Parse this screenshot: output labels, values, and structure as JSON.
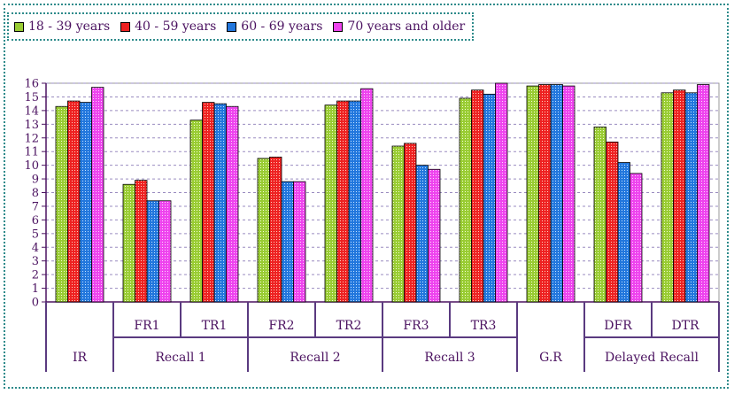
{
  "chart_data": {
    "type": "bar",
    "legend_position": "top-left",
    "grid": true,
    "ylim": [
      0,
      16
    ],
    "y_ticks": [
      "0",
      "1",
      "2",
      "3",
      "4",
      "5",
      "6",
      "7",
      "8",
      "9",
      "10",
      "11",
      "12",
      "13",
      "14",
      "15",
      "16"
    ],
    "categories": [
      "IR",
      "FR1",
      "TR1",
      "FR2",
      "TR2",
      "FR3",
      "TR3",
      "G.R",
      "DFR",
      "DTR"
    ],
    "category_labels": [
      "",
      "FR1",
      "TR1",
      "FR2",
      "TR2",
      "FR3",
      "TR3",
      "",
      "DFR",
      "DTR"
    ],
    "groups": [
      {
        "label": "IR",
        "span": 1
      },
      {
        "label": "Recall 1",
        "span": 2
      },
      {
        "label": "Recall 2",
        "span": 2
      },
      {
        "label": "Recall 3",
        "span": 2
      },
      {
        "label": "G.R",
        "span": 1
      },
      {
        "label": "Delayed Recall",
        "span": 2
      }
    ],
    "series": [
      {
        "name": "18 - 39 years",
        "color": "#99cc33",
        "values": [
          14.3,
          8.6,
          13.3,
          10.5,
          14.4,
          11.4,
          14.9,
          15.8,
          12.8,
          15.3
        ]
      },
      {
        "name": "40 - 59 years",
        "color": "#ee2222",
        "values": [
          14.7,
          8.9,
          14.6,
          10.6,
          14.7,
          11.6,
          15.5,
          15.9,
          11.7,
          15.5
        ]
      },
      {
        "name": "60 - 69 years",
        "color": "#2277dd",
        "values": [
          14.6,
          7.4,
          14.5,
          8.8,
          14.7,
          10.0,
          15.2,
          15.9,
          10.2,
          15.3
        ]
      },
      {
        "name": "70  years and older",
        "color": "#ee44ee",
        "values": [
          15.7,
          7.4,
          14.3,
          8.8,
          15.6,
          9.7,
          16.0,
          15.8,
          9.4,
          15.9
        ]
      }
    ]
  }
}
